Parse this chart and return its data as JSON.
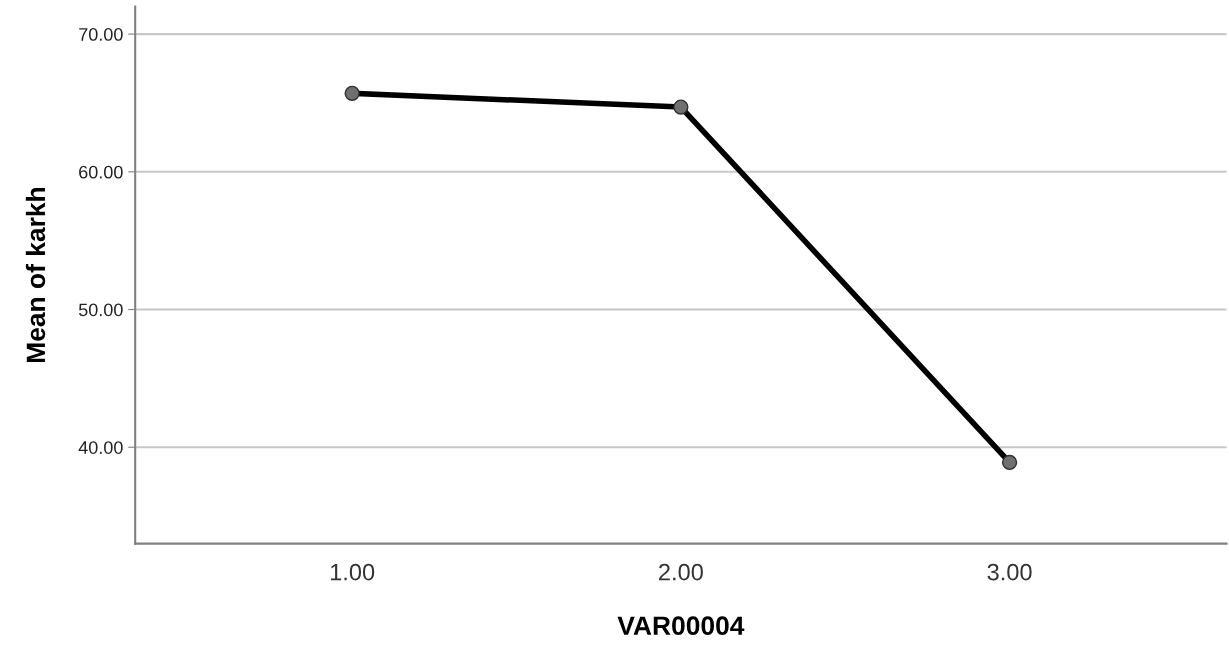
{
  "chart_data": {
    "type": "line",
    "xlabel": "VAR00004",
    "ylabel": "Mean of karkh",
    "categories": [
      "1.00",
      "2.00",
      "3.00"
    ],
    "series": [
      {
        "color": "#000000",
        "values": [
          65.7,
          64.7,
          38.9
        ]
      }
    ],
    "ylim": [
      33,
      72
    ],
    "yticks": [
      {
        "value": 40,
        "label": "40.00"
      },
      {
        "value": 50,
        "label": "50.00"
      },
      {
        "value": 60,
        "label": "60.00"
      },
      {
        "value": 70,
        "label": "70.00"
      }
    ],
    "grid": "y",
    "marker": "circle",
    "line_style": "solid"
  }
}
